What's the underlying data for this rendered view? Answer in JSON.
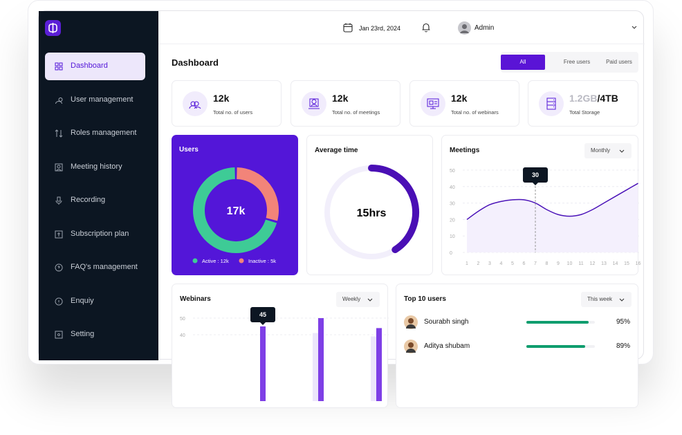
{
  "sidebar": {
    "items": [
      "Dashboard",
      "User management",
      "Roles management",
      "Meeting history",
      "Recording",
      "Subscription plan",
      "FAQ's management",
      "Enquiy",
      "Setting"
    ],
    "active": 0
  },
  "header": {
    "date": "Jan 23rd, 2024",
    "user": "Admin"
  },
  "page_title": "Dashboard",
  "tabs": {
    "items": [
      "All",
      "Free users",
      "Paid users"
    ],
    "active": 0
  },
  "stats": [
    {
      "value": "12k",
      "label": "Total no. of users"
    },
    {
      "value": "12k",
      "label": "Total no. of meetings"
    },
    {
      "value": "12k",
      "label": "Total no. of webinars"
    },
    {
      "value": "1.2GB",
      "value_total": "/4TB",
      "label": "Total Storage"
    }
  ],
  "users_card": {
    "title": "Users",
    "total": "17k",
    "segments": [
      {
        "name": "Active : 12k",
        "value": 12,
        "color": "#3ecb96"
      },
      {
        "name": "Inactive : 5k",
        "value": 5,
        "color": "#f28479"
      }
    ]
  },
  "average_time": {
    "title": "Average time",
    "value": "15hrs",
    "progress": 41
  },
  "meetings": {
    "title": "Meetings",
    "dropdown": "Monthly",
    "x": [
      1,
      2,
      3,
      4,
      5,
      6,
      7,
      8,
      9,
      10,
      11,
      12,
      13,
      14,
      15,
      16
    ],
    "values": [
      20,
      25,
      29,
      31,
      32,
      32,
      30,
      26,
      23,
      22,
      23,
      26,
      30,
      34,
      38,
      42
    ],
    "xlim": [
      1,
      16
    ],
    "xticks": [
      1,
      2,
      3,
      4,
      5,
      6,
      7,
      8,
      9,
      10,
      11,
      12,
      13,
      14,
      15,
      16
    ],
    "ylim": [
      0,
      50
    ],
    "yticks": [
      0,
      10,
      20,
      30,
      40,
      50
    ],
    "tooltip_index": 6,
    "color": "#4a12b8"
  },
  "webinars": {
    "title": "Webinars",
    "dropdown": "Weekly",
    "ylim": [
      0,
      50
    ],
    "yticks": [
      40,
      50
    ],
    "series": [
      {
        "color": "#ece6fb",
        "values": [
          null,
          41,
          39
        ]
      },
      {
        "color": "#7e3fe6",
        "values": [
          45,
          50,
          44
        ]
      }
    ],
    "tooltip_index": 0
  },
  "top_users": {
    "title": "Top 10 users",
    "dropdown": "This week",
    "rows": [
      {
        "name": "Sourabh singh",
        "value": 95,
        "value_label": "95%"
      },
      {
        "name": "Aditya shubam",
        "value": 89,
        "value_label": "89%"
      }
    ]
  }
}
